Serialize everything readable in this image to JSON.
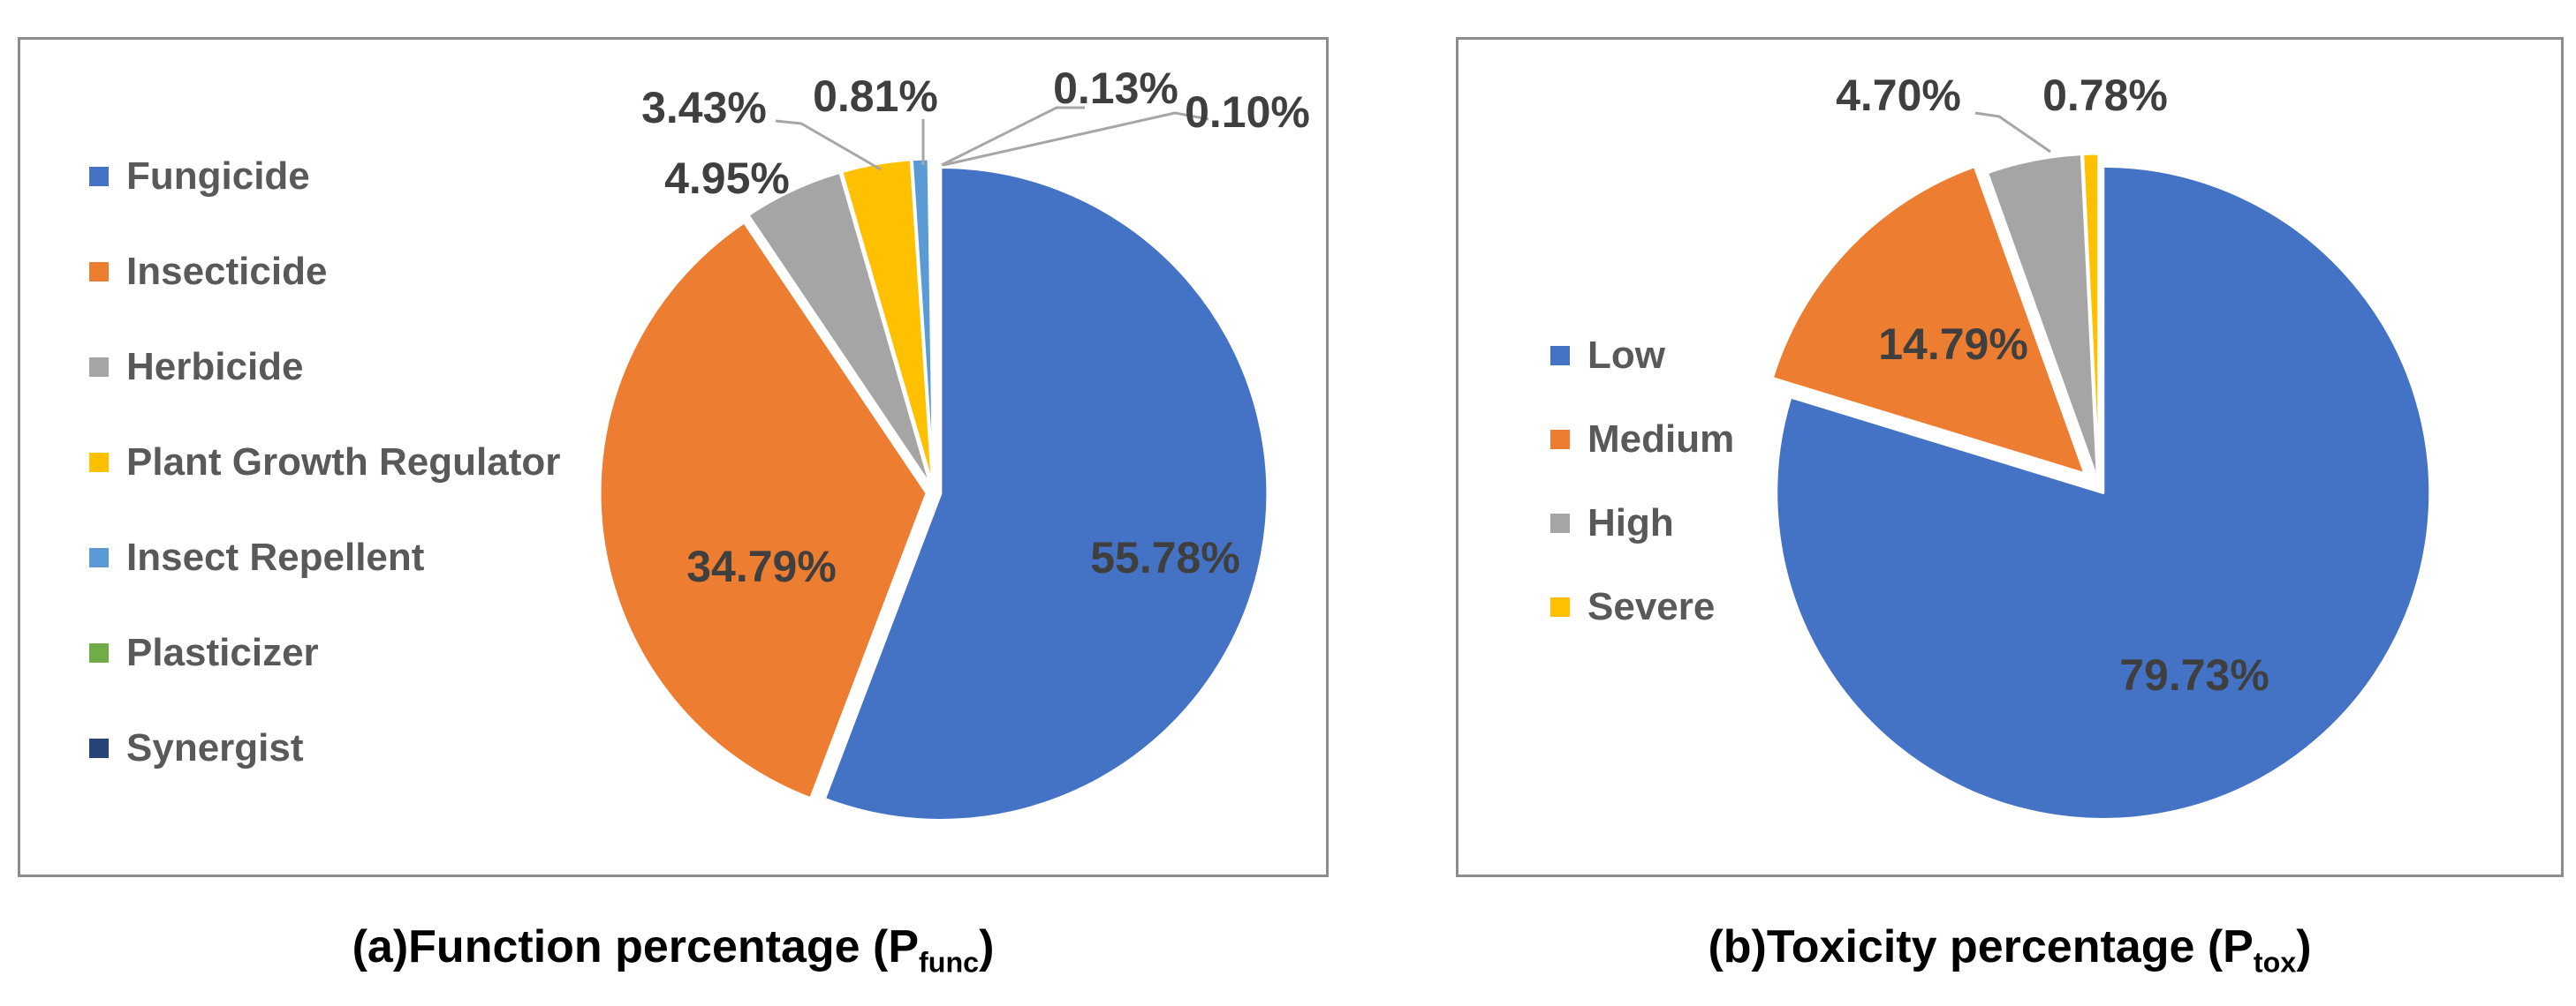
{
  "figure": {
    "captions": [
      {
        "prefix": "(a)",
        "main": "Function percentage (P",
        "sub": "func",
        "close": ")"
      },
      {
        "prefix": "(b)",
        "main": "Toxicity percentage (P",
        "sub": "tox",
        "close": ")"
      }
    ]
  },
  "palette": {
    "blue": "#4472C4",
    "orange": "#ED7D31",
    "gray": "#A5A5A5",
    "yellow": "#FFC000",
    "light_blue": "#5B9BD5",
    "green": "#70AD47",
    "navy": "#264478",
    "legend_text": "#595959",
    "label_text": "#3F3F3F",
    "leader_line": "#A6A6A6",
    "panel_border": "#8C8C8C"
  },
  "chart_data": [
    {
      "type": "pie",
      "title": "(a)Function percentage (Pfunc)",
      "labels": [
        "Fungicide",
        "Insecticide",
        "Herbicide",
        "Plant Growth Regulator",
        "Insect Repellent",
        "Plasticizer",
        "Synergist"
      ],
      "values": [
        55.78,
        34.79,
        4.95,
        3.43,
        0.81,
        0.13,
        0.1
      ],
      "pct_labels": [
        "55.78%",
        "34.79%",
        "4.95%",
        "3.43%",
        "0.81%",
        "0.13%",
        "0.10%"
      ],
      "colors": [
        "#4472C4",
        "#ED7D31",
        "#A5A5A5",
        "#FFC000",
        "#5B9BD5",
        "#70AD47",
        "#264478"
      ],
      "start_angle_deg": 0,
      "direction": "clockwise",
      "legend_position": "left"
    },
    {
      "type": "pie",
      "title": "(b)Toxicity percentage (Ptox)",
      "labels": [
        "Low",
        "Medium",
        "High",
        "Severe"
      ],
      "values": [
        79.73,
        14.79,
        4.7,
        0.78
      ],
      "pct_labels": [
        "79.73%",
        "14.79%",
        "4.70%",
        "0.78%"
      ],
      "colors": [
        "#4472C4",
        "#ED7D31",
        "#A5A5A5",
        "#FFC000"
      ],
      "start_angle_deg": 0,
      "direction": "clockwise",
      "exploded_slice": "Medium",
      "legend_position": "left"
    }
  ]
}
